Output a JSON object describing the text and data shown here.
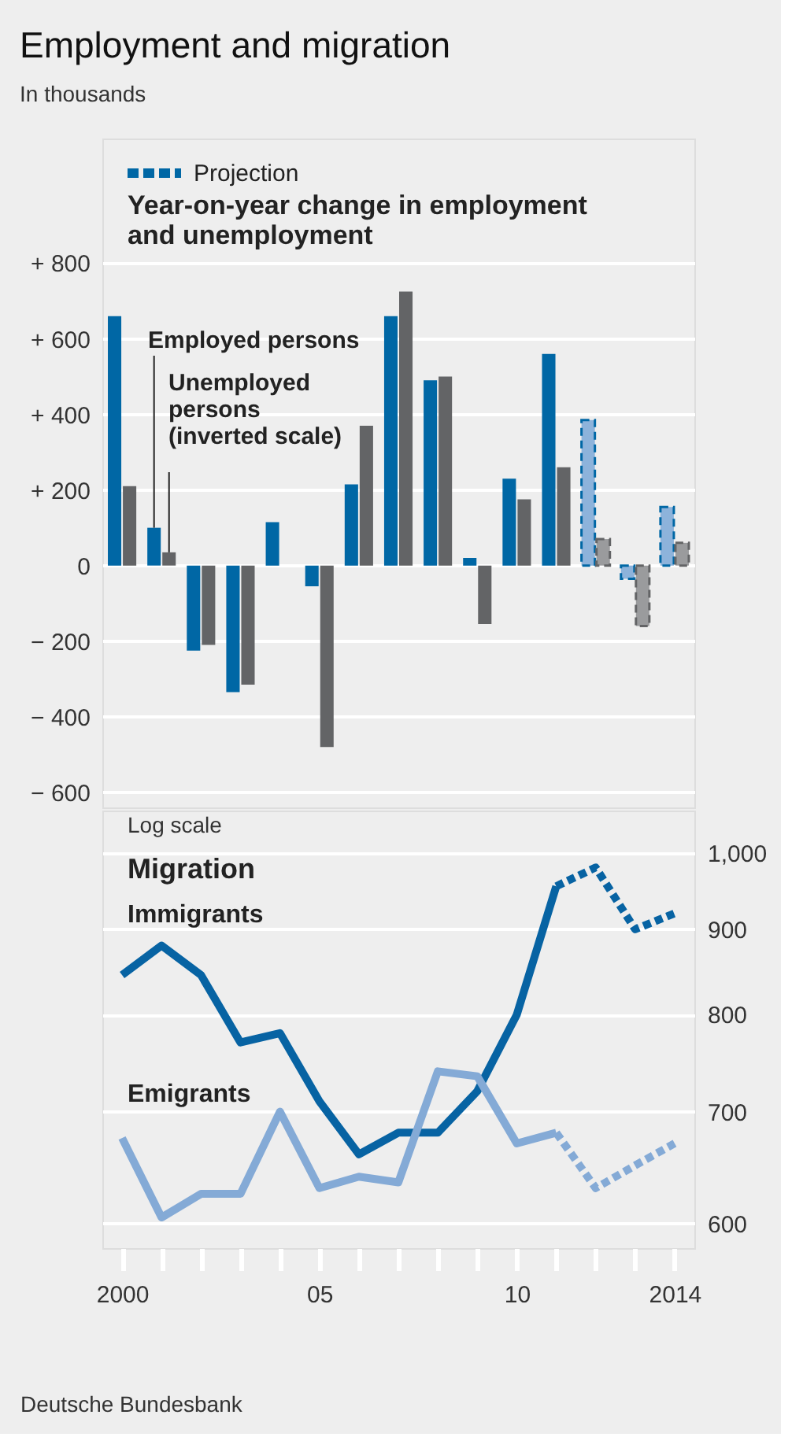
{
  "chart_data": [
    {
      "type": "bar",
      "title": "Employment and migration",
      "subtitle": "In thousands",
      "annotations": [
        "Year-on-year change in employment\nand unemployment"
      ],
      "categories": [
        "2000",
        null,
        null,
        null,
        null,
        "05",
        null,
        null,
        null,
        null,
        "10",
        null,
        null,
        null,
        "2014"
      ],
      "series": [
        {
          "name": "Employed persons",
          "color": "#0067a5",
          "values": [
            660,
            100,
            -225,
            -335,
            115,
            -55,
            215,
            660,
            490,
            20,
            230,
            560,
            null,
            null,
            null
          ]
        },
        {
          "name": "Unemployed\npersons\n(inverted scale)",
          "color": "#636466",
          "values": [
            210,
            35,
            -210,
            -315,
            null,
            -480,
            370,
            725,
            500,
            -155,
            175,
            260,
            null,
            null,
            null
          ]
        },
        {
          "name": "Projection",
          "color": "#8db3db",
          "line_style": "dashed",
          "values": [
            null,
            null,
            null,
            null,
            null,
            null,
            null,
            null,
            null,
            null,
            null,
            null,
            385,
            -35,
            155
          ]
        },
        {
          "color": "#9a9b9d",
          "line_style": "dashed",
          "values": [
            null,
            null,
            null,
            null,
            null,
            null,
            null,
            null,
            null,
            null,
            null,
            null,
            70,
            -160,
            60
          ]
        }
      ],
      "ylim": [
        -640,
        1130
      ],
      "yticks": [
        {
          "value": -600,
          "label": "− 600"
        },
        {
          "value": -400,
          "label": "− 400"
        },
        {
          "value": -200,
          "label": "− 200"
        },
        0,
        {
          "value": 200,
          "label": "+ 200"
        },
        {
          "value": 400,
          "label": "+ 400"
        },
        {
          "value": 600,
          "label": "+ 600"
        },
        {
          "value": 800,
          "label": "+ 800"
        }
      ],
      "grid": "y",
      "legend": "top left",
      "tick_labels": "y"
    },
    {
      "type": "line",
      "title": "Migration",
      "annotations": [
        "Log scale",
        "Deutsche Bundesbank"
      ],
      "categories": [
        "2000",
        null,
        null,
        null,
        null,
        "05",
        null,
        null,
        null,
        null,
        "10",
        null,
        null,
        null,
        "2014"
      ],
      "series": [
        {
          "name": "Immigrants",
          "color": "#0763a3",
          "values": [
            845,
            880,
            845,
            770,
            780,
            710,
            660,
            680,
            680,
            720,
            800,
            955,
            null,
            null,
            null
          ]
        },
        {
          "color": "#0763a3",
          "line_style": "dashed",
          "values": [
            null,
            null,
            null,
            null,
            null,
            null,
            null,
            null,
            null,
            null,
            null,
            955,
            980,
            900,
            920
          ]
        },
        {
          "name": "Emigrants",
          "color": "#84aad6",
          "values": [
            675,
            605,
            625,
            625,
            700,
            630,
            640,
            635,
            740,
            735,
            670,
            680,
            null,
            null,
            null
          ]
        },
        {
          "color": "#84aad6",
          "line_style": "dashed",
          "values": [
            null,
            null,
            null,
            null,
            null,
            null,
            null,
            null,
            null,
            null,
            null,
            680,
            630,
            650,
            670
          ]
        }
      ],
      "log": true,
      "ylim": [
        580,
        1060
      ],
      "yticks": [
        600,
        700,
        800,
        900,
        {
          "value": 1000,
          "label": "1,000"
        }
      ],
      "grid": "y"
    }
  ]
}
